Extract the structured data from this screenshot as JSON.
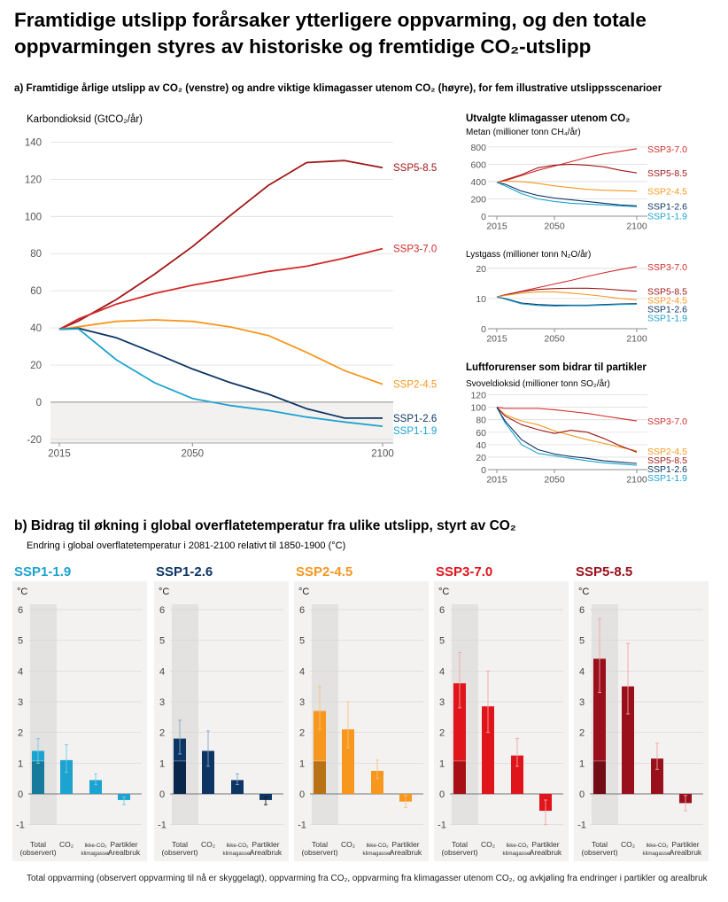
{
  "title": "Framtidige utslipp forårsaker ytterligere oppvarming, og den totale oppvarmingen styres av historiske og fremtidige CO₂-utslipp",
  "section_a_title": "a) Framtidige årlige utslipp av CO₂ (venstre) og andre viktige klimagasser utenom CO₂ (høyre), for fem illustrative utslippsscenarioer",
  "section_b_title": "b) Bidrag til økning i global overflatetemperatur fra ulike utslipp, styrt av CO₂",
  "section_b_subtitle": "Endring i global overflatetemperatur i 2081-2100 relativt til 1850-1900 (°C)",
  "footer": "Total oppvarming (observert oppvarming til nå er skyggelagt), oppvarming fra CO₂, oppvarming fra klimagasser utenom CO₂, og avkjøling fra endringer i partikler og arealbruk",
  "colors": {
    "SSP1-1.9": "#1ca3cf",
    "SSP1-2.6": "#0d3563",
    "SSP2-4.5": "#f7971e",
    "SSP3-7.0": "#e0151b",
    "SSP5-8.5": "#99101c",
    "SSP3-7.0-line": "#d32a2a",
    "SSP5-8.5-line": "#a01819"
  },
  "chart_data": [
    {
      "type": "line",
      "id": "co2",
      "title": "Karbondioksid (GtCO₂/år)",
      "x": [
        2015,
        2020,
        2030,
        2040,
        2050,
        2060,
        2070,
        2080,
        2090,
        2100
      ],
      "xticks": [
        2015,
        2050,
        2100
      ],
      "yticks": [
        -20,
        0,
        20,
        40,
        60,
        80,
        100,
        120,
        140
      ],
      "ylim": [
        -22,
        145
      ],
      "series": [
        {
          "name": "SSP5-8.5",
          "values": [
            39.2,
            43.7,
            55.3,
            68.9,
            83.8,
            100.6,
            116.8,
            129.0,
            130.1,
            126.3
          ]
        },
        {
          "name": "SSP3-7.0",
          "values": [
            39.2,
            44.8,
            52.8,
            58.5,
            63.0,
            66.6,
            70.4,
            73.2,
            77.6,
            82.7
          ]
        },
        {
          "name": "SSP2-4.5",
          "values": [
            39.2,
            40.6,
            43.5,
            44.3,
            43.5,
            40.5,
            35.9,
            26.8,
            17.0,
            9.7
          ]
        },
        {
          "name": "SSP1-2.6",
          "values": [
            39.2,
            39.8,
            34.7,
            26.5,
            17.9,
            10.5,
            4.3,
            -3.5,
            -8.6,
            -8.6
          ]
        },
        {
          "name": "SSP1-1.9",
          "values": [
            39.2,
            39.5,
            22.8,
            10.5,
            2.0,
            -1.8,
            -4.5,
            -8.0,
            -10.7,
            -13.0
          ]
        }
      ]
    },
    {
      "type": "line",
      "id": "methane",
      "group_title": "Utvalgte klimagasser utenom CO₂",
      "title": "Metan (millioner tonn CH₄/år)",
      "x": [
        2015,
        2020,
        2030,
        2040,
        2050,
        2060,
        2070,
        2080,
        2090,
        2100
      ],
      "xticks": [
        2015,
        2050,
        2100
      ],
      "yticks": [
        0,
        200,
        400,
        600,
        800
      ],
      "ylim": [
        0,
        850
      ],
      "series": [
        {
          "name": "SSP3-7.0",
          "values": [
            390,
            410,
            470,
            530,
            580,
            630,
            680,
            720,
            750,
            780
          ]
        },
        {
          "name": "SSP5-8.5",
          "values": [
            390,
            420,
            480,
            560,
            590,
            600,
            590,
            570,
            530,
            500
          ]
        },
        {
          "name": "SSP2-4.5",
          "values": [
            390,
            405,
            400,
            380,
            350,
            330,
            310,
            300,
            295,
            290
          ]
        },
        {
          "name": "SSP1-2.6",
          "values": [
            390,
            370,
            290,
            240,
            210,
            190,
            170,
            150,
            130,
            120
          ]
        },
        {
          "name": "SSP1-1.9",
          "values": [
            390,
            350,
            260,
            200,
            170,
            150,
            140,
            130,
            120,
            110
          ]
        }
      ]
    },
    {
      "type": "line",
      "id": "n2o",
      "title": "Lystgass (millioner tonn N₂O/år)",
      "x": [
        2015,
        2020,
        2030,
        2040,
        2050,
        2060,
        2070,
        2080,
        2090,
        2100
      ],
      "xticks": [
        2015,
        2050,
        2100
      ],
      "yticks": [
        0,
        10,
        20
      ],
      "ylim": [
        0,
        22
      ],
      "series": [
        {
          "name": "SSP3-7.0",
          "values": [
            10.5,
            11.2,
            12.4,
            13.6,
            14.8,
            16.0,
            17.3,
            18.5,
            19.6,
            20.6
          ]
        },
        {
          "name": "SSP5-8.5",
          "values": [
            10.5,
            11.2,
            12.3,
            13.0,
            13.3,
            13.4,
            13.4,
            13.2,
            12.8,
            12.4
          ]
        },
        {
          "name": "SSP2-4.5",
          "values": [
            10.5,
            11.0,
            11.8,
            12.2,
            12.2,
            11.8,
            11.3,
            10.7,
            10.0,
            9.6
          ]
        },
        {
          "name": "SSP1-2.6",
          "values": [
            10.5,
            10.0,
            8.5,
            8.0,
            7.8,
            7.8,
            7.8,
            8.0,
            8.2,
            8.3
          ]
        },
        {
          "name": "SSP1-1.9",
          "values": [
            10.5,
            9.8,
            8.2,
            7.7,
            7.5,
            7.6,
            7.6,
            7.8,
            8.0,
            8.1
          ]
        }
      ]
    },
    {
      "type": "line",
      "id": "so2",
      "group_title": "Luftforurenser som bidrar til partikler",
      "title": "Svoveldioksid (millioner tonn SO₂/år)",
      "x": [
        2015,
        2020,
        2030,
        2040,
        2050,
        2060,
        2070,
        2080,
        2090,
        2100
      ],
      "xticks": [
        2015,
        2050,
        2100
      ],
      "yticks": [
        0,
        20,
        40,
        60,
        80,
        100,
        120
      ],
      "ylim": [
        0,
        125
      ],
      "series": [
        {
          "name": "SSP3-7.0",
          "values": [
            100,
            98,
            98,
            98,
            96,
            93,
            90,
            86,
            82,
            78
          ]
        },
        {
          "name": "SSP2-4.5",
          "values": [
            100,
            88,
            78,
            72,
            62,
            55,
            48,
            42,
            36,
            30
          ]
        },
        {
          "name": "SSP5-8.5",
          "values": [
            100,
            86,
            72,
            64,
            58,
            63,
            60,
            50,
            38,
            28
          ]
        },
        {
          "name": "SSP1-1.9",
          "values": [
            100,
            75,
            40,
            26,
            22,
            18,
            14,
            11,
            9,
            7
          ]
        },
        {
          "name": "SSP1-2.6",
          "values": [
            100,
            78,
            48,
            32,
            25,
            21,
            18,
            14,
            12,
            10
          ]
        }
      ]
    },
    {
      "type": "bar",
      "id": "contributions",
      "unit": "°C",
      "categories": [
        "Total (observert)",
        "CO₂",
        "Ikke-CO₂ klimagasser",
        "Partikler Arealbruk"
      ],
      "ylim": [
        -1,
        6
      ],
      "yticks": [
        -1,
        0,
        1,
        2,
        3,
        4,
        5,
        6
      ],
      "observed_warming": 1.07,
      "series": [
        {
          "name": "SSP1-1.9",
          "values": [
            1.4,
            1.1,
            0.45,
            -0.2
          ],
          "low": [
            1.0,
            0.7,
            0.3,
            -0.35
          ],
          "high": [
            1.8,
            1.6,
            0.65,
            -0.1
          ]
        },
        {
          "name": "SSP1-2.6",
          "values": [
            1.8,
            1.4,
            0.45,
            -0.2
          ],
          "low": [
            1.3,
            0.9,
            0.3,
            -0.35
          ],
          "high": [
            2.4,
            2.05,
            0.65,
            -0.1
          ]
        },
        {
          "name": "SSP2-4.5",
          "values": [
            2.7,
            2.1,
            0.75,
            -0.25
          ],
          "low": [
            2.1,
            1.5,
            0.5,
            -0.45
          ],
          "high": [
            3.5,
            3.0,
            1.1,
            -0.05
          ]
        },
        {
          "name": "SSP3-7.0",
          "values": [
            3.6,
            2.85,
            1.25,
            -0.55
          ],
          "low": [
            2.8,
            2.0,
            0.9,
            -1.0
          ],
          "high": [
            4.6,
            4.0,
            1.8,
            -0.2
          ]
        },
        {
          "name": "SSP5-8.5",
          "values": [
            4.4,
            3.5,
            1.15,
            -0.3
          ],
          "low": [
            3.3,
            2.6,
            0.8,
            -0.55
          ],
          "high": [
            5.7,
            4.9,
            1.65,
            -0.05
          ]
        }
      ]
    }
  ]
}
